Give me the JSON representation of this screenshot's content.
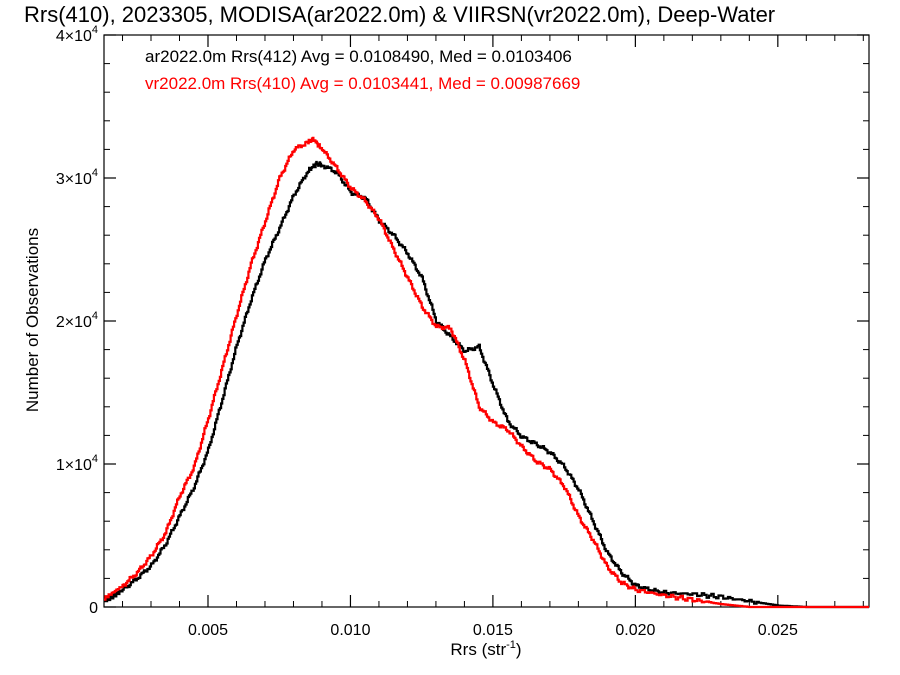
{
  "chart_data": {
    "type": "line",
    "title": "Rrs(410), 2023305, MODISA(ar2022.0m) & VIIRSN(vr2022.0m), Deep-Water",
    "xlabel": "Rrs (str",
    "xlabel_sup": "-1",
    "xlabel_close": ")",
    "ylabel": "Number of Observations",
    "xlim": [
      0.00135,
      0.0282
    ],
    "ylim": [
      0,
      40000
    ],
    "x_ticks": [
      {
        "value": 0.005,
        "label": "0.005"
      },
      {
        "value": 0.01,
        "label": "0.010"
      },
      {
        "value": 0.015,
        "label": "0.015"
      },
      {
        "value": 0.02,
        "label": "0.020"
      },
      {
        "value": 0.025,
        "label": "0.025"
      }
    ],
    "y_ticks": [
      {
        "value": 0,
        "label": "0"
      },
      {
        "value": 10000,
        "label": "1×10",
        "sup": "4"
      },
      {
        "value": 20000,
        "label": "2×10",
        "sup": "4"
      },
      {
        "value": 30000,
        "label": "3×10",
        "sup": "4"
      },
      {
        "value": 40000,
        "label": "4×10",
        "sup": "4"
      }
    ],
    "grid": false,
    "series": [
      {
        "name": "ar2022.0m Rrs(412) Avg = 0.0108490, Med = 0.0103406",
        "color": "#000000",
        "points": [
          [
            0.00135,
            400
          ],
          [
            0.002,
            1200
          ],
          [
            0.0025,
            2000
          ],
          [
            0.003,
            2900
          ],
          [
            0.0035,
            4400
          ],
          [
            0.004,
            6400
          ],
          [
            0.0045,
            8400
          ],
          [
            0.005,
            11000
          ],
          [
            0.0055,
            14600
          ],
          [
            0.006,
            18300
          ],
          [
            0.0065,
            21500
          ],
          [
            0.007,
            24300
          ],
          [
            0.0075,
            26500
          ],
          [
            0.008,
            28800
          ],
          [
            0.0085,
            30500
          ],
          [
            0.0088,
            31000
          ],
          [
            0.009,
            30900
          ],
          [
            0.0095,
            30400
          ],
          [
            0.01,
            29000
          ],
          [
            0.0105,
            28600
          ],
          [
            0.011,
            27000
          ],
          [
            0.0115,
            26000
          ],
          [
            0.012,
            24700
          ],
          [
            0.0125,
            23000
          ],
          [
            0.013,
            20000
          ],
          [
            0.0135,
            18900
          ],
          [
            0.014,
            17900
          ],
          [
            0.0145,
            18200
          ],
          [
            0.015,
            15500
          ],
          [
            0.0155,
            13000
          ],
          [
            0.016,
            11900
          ],
          [
            0.0165,
            11400
          ],
          [
            0.017,
            10800
          ],
          [
            0.0175,
            9800
          ],
          [
            0.018,
            8200
          ],
          [
            0.0185,
            6000
          ],
          [
            0.019,
            3800
          ],
          [
            0.0195,
            2400
          ],
          [
            0.02,
            1500
          ],
          [
            0.0205,
            1200
          ],
          [
            0.021,
            1000
          ],
          [
            0.022,
            900
          ],
          [
            0.023,
            700
          ],
          [
            0.024,
            400
          ],
          [
            0.025,
            100
          ],
          [
            0.026,
            0
          ],
          [
            0.0282,
            0
          ]
        ]
      },
      {
        "name": "vr2022.0m Rrs(410) Avg = 0.0103441, Med = 0.00987669",
        "color": "#ff0000",
        "points": [
          [
            0.00135,
            600
          ],
          [
            0.002,
            1500
          ],
          [
            0.0025,
            2400
          ],
          [
            0.003,
            3600
          ],
          [
            0.0035,
            5200
          ],
          [
            0.004,
            7800
          ],
          [
            0.0045,
            9800
          ],
          [
            0.005,
            13200
          ],
          [
            0.0055,
            16800
          ],
          [
            0.006,
            20500
          ],
          [
            0.0065,
            24000
          ],
          [
            0.007,
            27000
          ],
          [
            0.0075,
            30000
          ],
          [
            0.008,
            32000
          ],
          [
            0.0085,
            32500
          ],
          [
            0.0087,
            32700
          ],
          [
            0.009,
            32000
          ],
          [
            0.0095,
            30700
          ],
          [
            0.01,
            29300
          ],
          [
            0.0105,
            28400
          ],
          [
            0.011,
            27100
          ],
          [
            0.0115,
            25000
          ],
          [
            0.012,
            23000
          ],
          [
            0.0125,
            21000
          ],
          [
            0.013,
            19600
          ],
          [
            0.0135,
            19500
          ],
          [
            0.014,
            17200
          ],
          [
            0.0145,
            14000
          ],
          [
            0.015,
            12900
          ],
          [
            0.0155,
            12400
          ],
          [
            0.016,
            11200
          ],
          [
            0.0165,
            10200
          ],
          [
            0.017,
            9600
          ],
          [
            0.0175,
            8400
          ],
          [
            0.018,
            6300
          ],
          [
            0.0185,
            4700
          ],
          [
            0.019,
            2800
          ],
          [
            0.0195,
            1700
          ],
          [
            0.02,
            1200
          ],
          [
            0.021,
            800
          ],
          [
            0.022,
            500
          ],
          [
            0.023,
            200
          ],
          [
            0.024,
            0
          ],
          [
            0.0282,
            0
          ]
        ]
      }
    ]
  }
}
